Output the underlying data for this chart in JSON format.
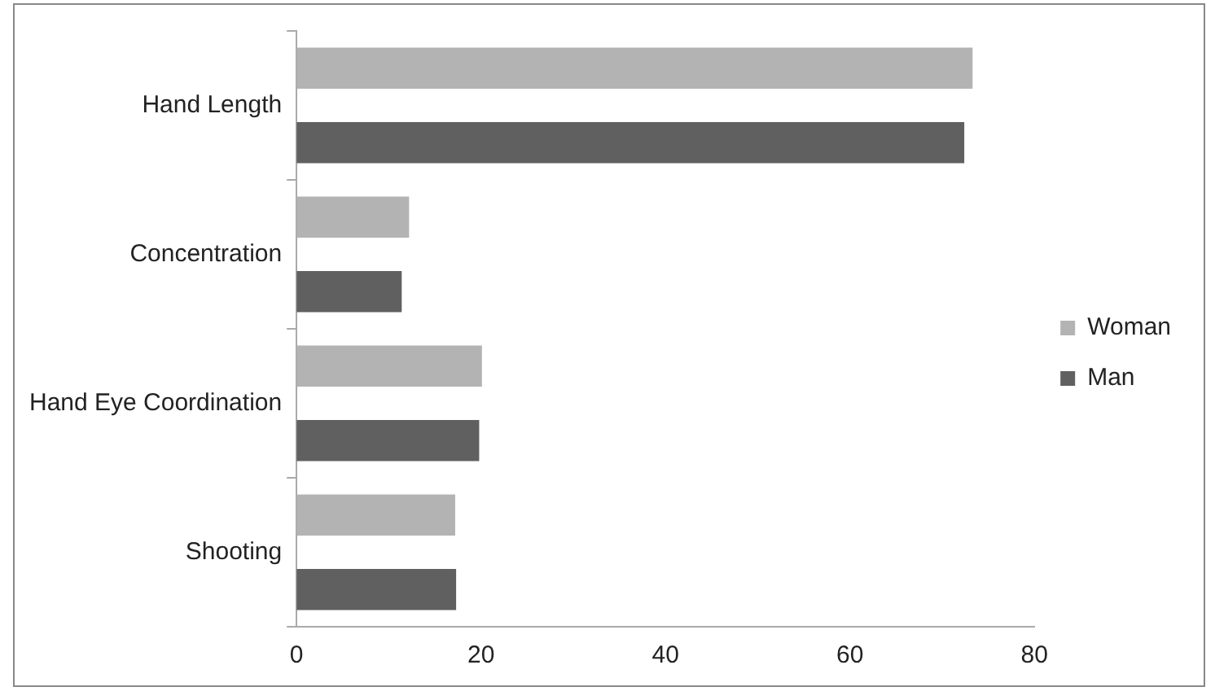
{
  "chart_data": {
    "type": "bar",
    "orientation": "horizontal",
    "categories": [
      "Hand Length",
      "Concentration",
      "Hand Eye Coordination",
      "Shooting"
    ],
    "series": [
      {
        "name": "Woman",
        "color": "#b3b3b3",
        "values": [
          73.3,
          12.2,
          20.1,
          17.2
        ]
      },
      {
        "name": "Man",
        "color": "#606060",
        "values": [
          72.4,
          11.4,
          19.8,
          17.3
        ]
      }
    ],
    "xlim": [
      0,
      80
    ],
    "xticks": [
      0,
      20,
      40,
      60,
      80
    ],
    "grid": false,
    "legend": "right"
  }
}
